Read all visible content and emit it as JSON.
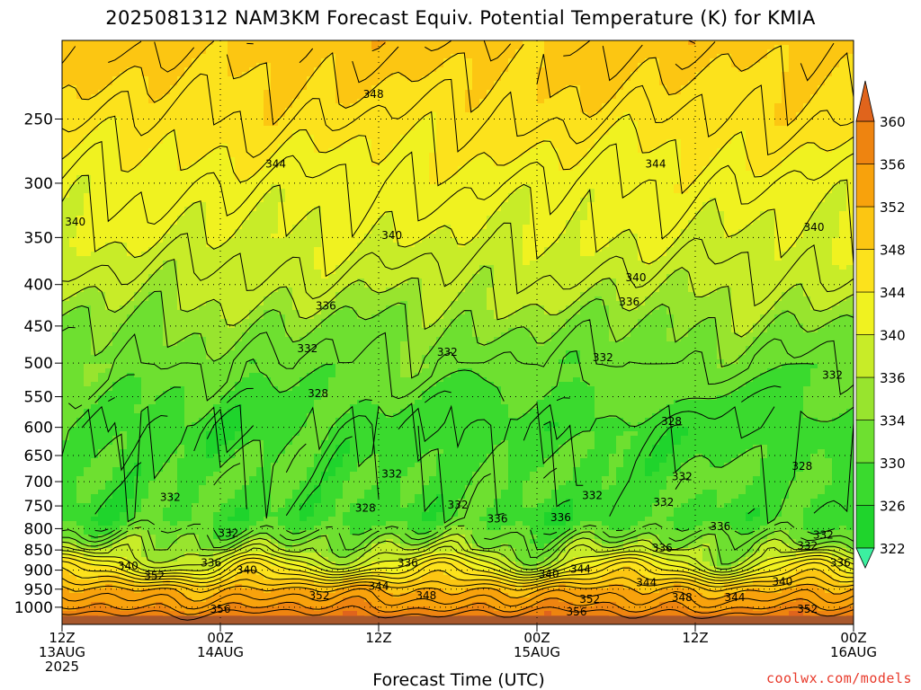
{
  "chart_data": {
    "type": "heatmap",
    "title": "2025081312 NAM3KM Forecast Equiv. Potential Temperature (K) for KMIA",
    "xlabel": "Forecast Time (UTC)",
    "ylabel": "",
    "y_scale": "log",
    "y_reversed": true,
    "ylim": [
      1050,
      200
    ],
    "y_ticks": [
      250,
      300,
      350,
      400,
      450,
      500,
      550,
      600,
      650,
      700,
      750,
      800,
      850,
      900,
      950,
      1000
    ],
    "x_unit": "forecast hour",
    "xlim": [
      0,
      60
    ],
    "x_ticks": [
      {
        "x": 0,
        "line1": "12Z",
        "line2": "13AUG",
        "line3": "2025"
      },
      {
        "x": 12,
        "line1": "00Z",
        "line2": "14AUG",
        "line3": ""
      },
      {
        "x": 24,
        "line1": "12Z",
        "line2": "",
        "line3": ""
      },
      {
        "x": 36,
        "line1": "00Z",
        "line2": "15AUG",
        "line3": ""
      },
      {
        "x": 48,
        "line1": "12Z",
        "line2": "",
        "line3": ""
      },
      {
        "x": 60,
        "line1": "00Z",
        "line2": "16AUG",
        "line3": ""
      }
    ],
    "grid": true,
    "colorbar": {
      "placement": "right",
      "ticks": [
        322,
        326,
        330,
        334,
        336,
        340,
        344,
        348,
        352,
        356,
        360
      ],
      "bands": [
        {
          "from": 318,
          "to": 322,
          "color": "#3cf0a0"
        },
        {
          "from": 322,
          "to": 326,
          "color": "#1fd42c"
        },
        {
          "from": 326,
          "to": 330,
          "color": "#3ada2e"
        },
        {
          "from": 330,
          "to": 334,
          "color": "#6ee030"
        },
        {
          "from": 334,
          "to": 336,
          "color": "#98e42e"
        },
        {
          "from": 336,
          "to": 340,
          "color": "#c8ec28"
        },
        {
          "from": 340,
          "to": 344,
          "color": "#f0f220"
        },
        {
          "from": 344,
          "to": 348,
          "color": "#fce21c"
        },
        {
          "from": 348,
          "to": 352,
          "color": "#fcc612"
        },
        {
          "from": 352,
          "to": 356,
          "color": "#f8a20c"
        },
        {
          "from": 356,
          "to": 360,
          "color": "#ee8410"
        },
        {
          "from": 360,
          "to": 364,
          "color": "#e0641c"
        }
      ]
    },
    "profile": [
      {
        "p": 200,
        "theta_e": 350
      },
      {
        "p": 250,
        "theta_e": 346
      },
      {
        "p": 300,
        "theta_e": 342
      },
      {
        "p": 350,
        "theta_e": 340
      },
      {
        "p": 400,
        "theta_e": 337
      },
      {
        "p": 450,
        "theta_e": 334
      },
      {
        "p": 500,
        "theta_e": 332
      },
      {
        "p": 600,
        "theta_e": 328
      },
      {
        "p": 700,
        "theta_e": 330
      },
      {
        "p": 775,
        "theta_e": 328
      },
      {
        "p": 850,
        "theta_e": 336
      },
      {
        "p": 900,
        "theta_e": 343
      },
      {
        "p": 950,
        "theta_e": 352
      },
      {
        "p": 1000,
        "theta_e": 356
      },
      {
        "p": 1050,
        "theta_e": 362
      }
    ],
    "contour_labels": [
      {
        "x": 23.6,
        "p": 233,
        "text": "348"
      },
      {
        "x": 16.2,
        "p": 284,
        "text": "344"
      },
      {
        "x": 45.0,
        "p": 284,
        "text": "344"
      },
      {
        "x": 1.0,
        "p": 335,
        "text": "340"
      },
      {
        "x": 25.0,
        "p": 348,
        "text": "340"
      },
      {
        "x": 57.0,
        "p": 340,
        "text": "340"
      },
      {
        "x": 43.5,
        "p": 392,
        "text": "340"
      },
      {
        "x": 20.0,
        "p": 425,
        "text": "336"
      },
      {
        "x": 43.0,
        "p": 420,
        "text": "336"
      },
      {
        "x": 18.6,
        "p": 480,
        "text": "332"
      },
      {
        "x": 29.2,
        "p": 485,
        "text": "332"
      },
      {
        "x": 41.0,
        "p": 492,
        "text": "332"
      },
      {
        "x": 58.4,
        "p": 517,
        "text": "332"
      },
      {
        "x": 19.4,
        "p": 545,
        "text": "328"
      },
      {
        "x": 46.2,
        "p": 590,
        "text": "328"
      },
      {
        "x": 56.1,
        "p": 670,
        "text": "328"
      },
      {
        "x": 25.0,
        "p": 685,
        "text": "332"
      },
      {
        "x": 47.0,
        "p": 690,
        "text": "332"
      },
      {
        "x": 8.2,
        "p": 732,
        "text": "332"
      },
      {
        "x": 40.2,
        "p": 728,
        "text": "332"
      },
      {
        "x": 45.6,
        "p": 742,
        "text": "332"
      },
      {
        "x": 30.0,
        "p": 748,
        "text": "332"
      },
      {
        "x": 23.0,
        "p": 755,
        "text": "328"
      },
      {
        "x": 33.0,
        "p": 778,
        "text": "336"
      },
      {
        "x": 37.8,
        "p": 775,
        "text": "336"
      },
      {
        "x": 49.9,
        "p": 795,
        "text": "336"
      },
      {
        "x": 12.6,
        "p": 810,
        "text": "332"
      },
      {
        "x": 57.7,
        "p": 815,
        "text": "332"
      },
      {
        "x": 56.5,
        "p": 840,
        "text": "332"
      },
      {
        "x": 45.5,
        "p": 845,
        "text": "336"
      },
      {
        "x": 11.3,
        "p": 882,
        "text": "336"
      },
      {
        "x": 26.2,
        "p": 882,
        "text": "336"
      },
      {
        "x": 59.0,
        "p": 882,
        "text": "336"
      },
      {
        "x": 5.0,
        "p": 890,
        "text": "340"
      },
      {
        "x": 14.0,
        "p": 900,
        "text": "340"
      },
      {
        "x": 7.0,
        "p": 915,
        "text": "352"
      },
      {
        "x": 36.9,
        "p": 910,
        "text": "340"
      },
      {
        "x": 39.3,
        "p": 898,
        "text": "344"
      },
      {
        "x": 54.6,
        "p": 930,
        "text": "340"
      },
      {
        "x": 24.0,
        "p": 942,
        "text": "344"
      },
      {
        "x": 44.3,
        "p": 932,
        "text": "344"
      },
      {
        "x": 19.5,
        "p": 968,
        "text": "352"
      },
      {
        "x": 27.6,
        "p": 968,
        "text": "348"
      },
      {
        "x": 40.0,
        "p": 977,
        "text": "352"
      },
      {
        "x": 47.0,
        "p": 973,
        "text": "348"
      },
      {
        "x": 51.0,
        "p": 973,
        "text": "344"
      },
      {
        "x": 12.0,
        "p": 1005,
        "text": "356"
      },
      {
        "x": 39.0,
        "p": 1013,
        "text": "356"
      },
      {
        "x": 56.5,
        "p": 1005,
        "text": "352"
      }
    ]
  },
  "credit": "coolwx.com/models"
}
